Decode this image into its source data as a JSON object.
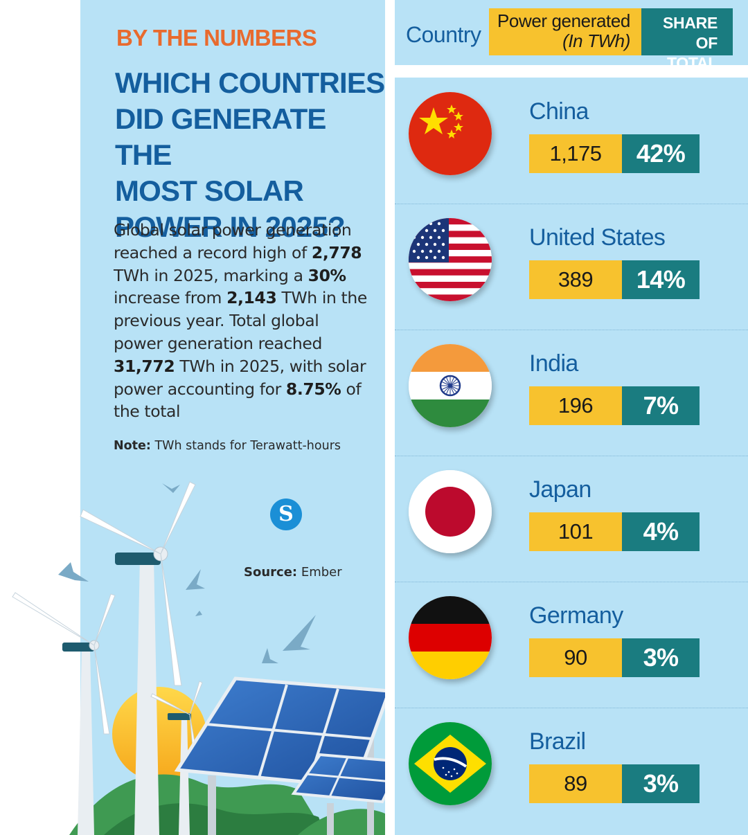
{
  "kicker": "BY THE NUMBERS",
  "headline": {
    "line1": "WHICH COUNTRIES",
    "line2": "DID GENERATE THE",
    "line3": "MOST SOLAR",
    "line4": "POWER IN 2025?"
  },
  "body": {
    "t1": "Global solar power generation reached a record high of ",
    "b1": "2,778",
    "t2": " TWh in 2025, marking a ",
    "b2": "30%",
    "t3": " increase from ",
    "b3": "2,143",
    "t4": " TWh in the previous year. Total global power generation reached ",
    "b4": "31,772",
    "t5": " TWh in 2025, with solar power accounting for ",
    "b5": "8.75%",
    "t6": " of the total"
  },
  "note": {
    "label": "Note:",
    "text": " TWh stands for Terawatt-hours"
  },
  "source": {
    "label": "Source:",
    "text": " Ember"
  },
  "logo_letter": "S",
  "colors": {
    "title_blue": "#145e9e",
    "accent_orange": "#e86a2e",
    "bg_light_blue": "#b8e2f6",
    "value_yellow": "#f7c22e",
    "share_teal": "#1a7c80"
  },
  "chart_data": {
    "type": "table",
    "columns": {
      "country": "Country",
      "power_line1": "Power generated",
      "power_line2": "(In TWh)",
      "share_line1": "SHARE",
      "share_line2": "OF TOTAL"
    },
    "rows": [
      {
        "country": "China",
        "twh": "1,175",
        "share": "42%",
        "flag_icon": "china-flag-icon"
      },
      {
        "country": "United States",
        "twh": "389",
        "share": "14%",
        "flag_icon": "usa-flag-icon"
      },
      {
        "country": "India",
        "twh": "196",
        "share": "7%",
        "flag_icon": "india-flag-icon"
      },
      {
        "country": "Japan",
        "twh": "101",
        "share": "4%",
        "flag_icon": "japan-flag-icon"
      },
      {
        "country": "Germany",
        "twh": "90",
        "share": "3%",
        "flag_icon": "germany-flag-icon"
      },
      {
        "country": "Brazil",
        "twh": "89",
        "share": "3%",
        "flag_icon": "brazil-flag-icon"
      }
    ]
  }
}
